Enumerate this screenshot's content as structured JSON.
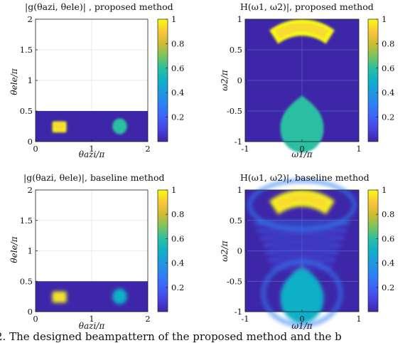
{
  "chart_data": [
    {
      "type": "heatmap",
      "title": "|g(θazi, θele)| , proposed method",
      "xlabel": "θazi/π",
      "ylabel": "θele/π",
      "xlim": [
        0,
        2
      ],
      "ylim": [
        0,
        2
      ],
      "x_ticks": [
        "0",
        "1",
        "2"
      ],
      "y_ticks": [
        "0",
        "0.5",
        "1",
        "1.5",
        "2"
      ],
      "grid": true,
      "colorbar": {
        "range": [
          0,
          1
        ],
        "ticks": [
          "0.2",
          "0.4",
          "0.6",
          "0.8",
          "1"
        ],
        "colormap": "parula"
      },
      "filled_region": {
        "x": [
          0,
          2
        ],
        "y": [
          0,
          0.5
        ],
        "value": 0
      },
      "features": [
        {
          "shape": "rect",
          "x": [
            0.3,
            0.55
          ],
          "y": [
            0.15,
            0.33
          ],
          "value": 1
        },
        {
          "shape": "ellipse",
          "cx": 1.5,
          "cy": 0.25,
          "rx": 0.13,
          "ry": 0.13,
          "value": 0.55
        }
      ]
    },
    {
      "type": "heatmap",
      "title": "H(ω1, ω2)|, proposed method",
      "xlabel": "ω1/π",
      "ylabel": "ω2/π",
      "xlim": [
        -1,
        1
      ],
      "ylim": [
        -1,
        1
      ],
      "x_ticks": [
        "-1",
        "0",
        "1"
      ],
      "y_ticks": [
        "-1",
        "-0.5",
        "0",
        "0.5",
        "1"
      ],
      "grid": true,
      "colorbar": {
        "range": [
          0,
          1
        ],
        "ticks": [
          "0.2",
          "0.4",
          "0.6",
          "0.8",
          "1"
        ],
        "colormap": "parula"
      },
      "features": [
        {
          "shape": "annular-sector",
          "theta_deg": [
            55,
            125
          ],
          "r": [
            0.73,
            1.0
          ],
          "value": 1
        },
        {
          "shape": "drop",
          "apex": [
            0,
            -0.25
          ],
          "center": [
            0,
            -0.8
          ],
          "radius": 0.38,
          "value": 0.55
        }
      ]
    },
    {
      "type": "heatmap",
      "title": "|g(θazi, θele)|, baseline method",
      "xlabel": "θazi/π",
      "ylabel": "θele/π",
      "xlim": [
        0,
        2
      ],
      "ylim": [
        0,
        2
      ],
      "x_ticks": [
        "0",
        "1",
        "2"
      ],
      "y_ticks": [
        "0",
        "0.5",
        "1",
        "1.5",
        "2"
      ],
      "grid": true,
      "colorbar": {
        "range": [
          0,
          1
        ],
        "ticks": [
          "0.2",
          "0.4",
          "0.6",
          "0.8",
          "1"
        ],
        "colormap": "parula"
      },
      "filled_region": {
        "x": [
          0,
          2
        ],
        "y": [
          0,
          0.5
        ],
        "value": 0
      },
      "features": [
        {
          "shape": "rect",
          "x": [
            0.3,
            0.55
          ],
          "y": [
            0.15,
            0.33
          ],
          "value": 0.95
        },
        {
          "shape": "ellipse",
          "cx": 1.5,
          "cy": 0.25,
          "rx": 0.13,
          "ry": 0.13,
          "value": 0.5
        }
      ]
    },
    {
      "type": "heatmap",
      "title": "H(ω1, ω2)|, baseline method",
      "xlabel": "ω1/π",
      "ylabel": "ω2/π",
      "xlim": [
        -1,
        1
      ],
      "ylim": [
        -1,
        1
      ],
      "x_ticks": [
        "-1",
        "0",
        "1"
      ],
      "y_ticks": [
        "-1",
        "-0.5",
        "0",
        "0.5",
        "1"
      ],
      "grid": true,
      "colorbar": {
        "range": [
          0,
          1
        ],
        "ticks": [
          "0.2",
          "0.4",
          "0.6",
          "0.8",
          "1"
        ],
        "colormap": "parula"
      },
      "features": [
        {
          "shape": "annular-sector",
          "theta_deg": [
            55,
            125
          ],
          "r": [
            0.73,
            1.0
          ],
          "value": 0.95
        },
        {
          "shape": "drop",
          "apex": [
            0,
            -0.25
          ],
          "center": [
            0,
            -0.8
          ],
          "radius": 0.38,
          "value": 0.5
        },
        {
          "shape": "ripples",
          "value": 0.25
        }
      ]
    }
  ],
  "caption_fragment": "2.  The designed beampattern of the proposed method and the b"
}
